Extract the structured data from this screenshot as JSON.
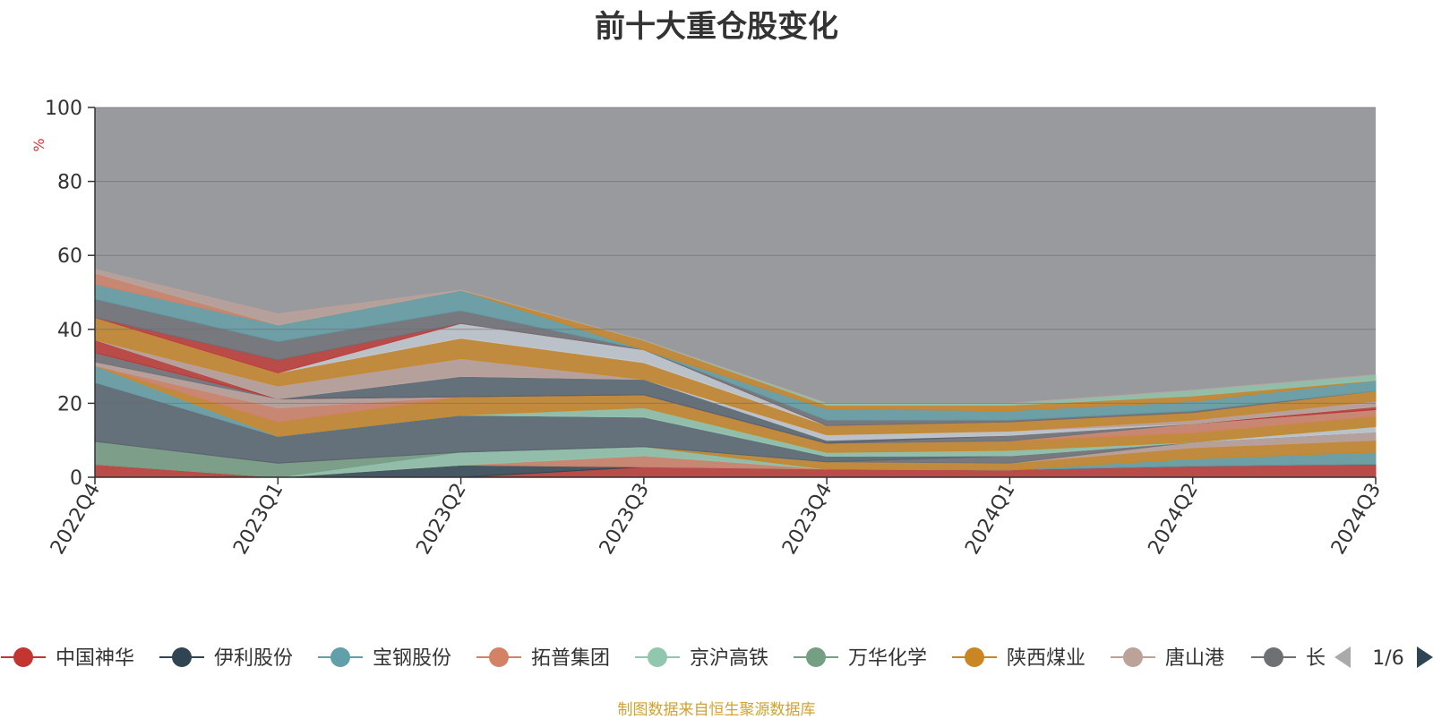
{
  "footer_note": "制图数据来自恒生聚源数据库",
  "legend": {
    "page_indicator": "1/6"
  },
  "chart_data": {
    "type": "area",
    "title": "前十大重仓股变化",
    "ylabel": "%",
    "ylim": [
      0,
      100
    ],
    "yticks": [
      0,
      20,
      40,
      60,
      80,
      100
    ],
    "categories": [
      "2022Q4",
      "2023Q1",
      "2023Q2",
      "2023Q3",
      "2023Q4",
      "2024Q1",
      "2024Q2",
      "2024Q3"
    ],
    "grid": true,
    "legend_position": "bottom",
    "plot_background": "#999a9e",
    "series": [
      {
        "name": "中国神华",
        "color": "#c23531",
        "values": [
          3.5,
          0,
          0,
          2.8,
          2.2,
          2.0,
          3.0,
          3.5
        ]
      },
      {
        "name": "伊利股份",
        "color": "#2f4554",
        "values": [
          0,
          0,
          3.3,
          0,
          0,
          0,
          0,
          0
        ]
      },
      {
        "name": "宝钢股份",
        "color": "#61a0a8",
        "values": [
          0,
          0,
          0,
          0,
          0,
          0,
          2.0,
          3.3
        ]
      },
      {
        "name": "拓普集团",
        "color": "#d48265",
        "values": [
          0,
          0,
          0,
          3.0,
          0,
          0,
          0,
          0
        ]
      },
      {
        "name": "京沪高铁",
        "color": "#91c7ae",
        "values": [
          0,
          0,
          3.5,
          2.5,
          0,
          0,
          0,
          0
        ]
      },
      {
        "name": "万华化学",
        "color": "#749f83",
        "values": [
          6.2,
          3.8,
          0,
          0,
          0,
          0,
          0,
          0
        ]
      },
      {
        "name": "陕西煤业",
        "color": "#ca8622",
        "values": [
          0,
          0,
          0,
          0,
          2.0,
          1.8,
          3.0,
          3.2
        ]
      },
      {
        "name": "唐山港",
        "color": "#bda29a",
        "values": [
          0,
          0,
          0,
          0,
          0,
          0,
          1.5,
          2.2
        ]
      },
      {
        "name": "长江电力",
        "color": "#6e7074",
        "values": [
          0,
          0,
          0,
          0,
          0,
          2.0,
          0,
          0
        ]
      },
      {
        "color": "#546570",
        "values": [
          16.0,
          7.3,
          10.0,
          8.0,
          1.5,
          0,
          0,
          0
        ]
      },
      {
        "color": "#c4ccd3",
        "values": [
          0,
          0,
          0,
          0,
          0,
          0,
          0,
          1.5
        ]
      },
      {
        "color": "#61a0a8",
        "values": [
          4.5,
          0,
          0,
          0,
          0,
          0,
          0,
          0
        ]
      },
      {
        "color": "#91c7ae",
        "values": [
          0,
          0,
          0,
          2.5,
          1.0,
          1.5,
          0,
          0
        ]
      },
      {
        "color": "#ca8622",
        "values": [
          0,
          3.8,
          5.0,
          3.5,
          2.5,
          2.5,
          2.5,
          2.8
        ]
      },
      {
        "color": "#d48265",
        "values": [
          0,
          3.8,
          0,
          0,
          0,
          0,
          2.5,
          1.8
        ]
      },
      {
        "color": "#bda29a",
        "values": [
          1.0,
          2.5,
          0,
          0,
          0,
          0,
          0,
          0
        ]
      },
      {
        "color": "#6e7074",
        "values": [
          2.5,
          0,
          0,
          0,
          0,
          1.5,
          0,
          0
        ]
      },
      {
        "color": "#c23531",
        "values": [
          3.5,
          0,
          0,
          0,
          0,
          0,
          0,
          0.8
        ]
      },
      {
        "color": "#546570",
        "values": [
          0,
          0,
          5.5,
          4.2,
          0.8,
          0,
          0,
          0
        ]
      },
      {
        "color": "#c4ccd3",
        "values": [
          0,
          0,
          0,
          0,
          1.5,
          1.2,
          0,
          0
        ]
      },
      {
        "color": "#bda29a",
        "values": [
          0,
          3.5,
          4.8,
          0,
          0,
          0,
          1.0,
          1.5
        ]
      },
      {
        "color": "#ca8622",
        "values": [
          6.0,
          3.5,
          5.5,
          4.5,
          2.5,
          2.5,
          2.0,
          2.8
        ]
      },
      {
        "color": "#c4ccd3",
        "values": [
          0,
          0,
          4.0,
          3.5,
          0,
          0,
          0,
          0
        ]
      },
      {
        "color": "#c23531",
        "values": [
          0,
          3.5,
          0,
          0,
          0,
          0,
          0,
          0
        ]
      },
      {
        "color": "#6e7074",
        "values": [
          5.0,
          5.0,
          3.5,
          0,
          1.5,
          0.5,
          0.5,
          0
        ]
      },
      {
        "color": "#61a0a8",
        "values": [
          4.0,
          4.5,
          5.5,
          0,
          3.0,
          2.5,
          2.5,
          2.8
        ]
      },
      {
        "color": "#d48265",
        "values": [
          3.0,
          0,
          0,
          0,
          0,
          0,
          0,
          0
        ]
      },
      {
        "color": "#ca8622",
        "values": [
          0,
          0,
          0,
          2.5,
          1.0,
          1.5,
          1.5,
          0
        ]
      },
      {
        "color": "#91c7ae",
        "values": [
          0,
          0,
          0,
          0,
          0.5,
          0.5,
          1.5,
          1.5
        ]
      },
      {
        "color": "#bda29a",
        "values": [
          1.0,
          3.0,
          0,
          0,
          0,
          0,
          0,
          0
        ]
      }
    ]
  }
}
